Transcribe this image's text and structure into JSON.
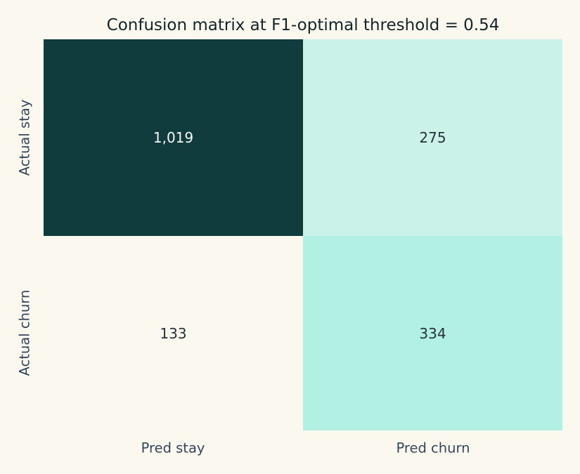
{
  "chart_data": {
    "type": "heatmap",
    "title": "Confusion matrix at F1-optimal threshold = 0.54",
    "threshold": 0.54,
    "rows": [
      "Actual stay",
      "Actual churn"
    ],
    "cols": [
      "Pred stay",
      "Pred churn"
    ],
    "values": [
      [
        1019,
        275
      ],
      [
        133,
        334
      ]
    ],
    "cell_labels": [
      [
        "1,019",
        "275"
      ],
      [
        "133",
        "334"
      ]
    ],
    "cell_colors": [
      [
        "#113c3e",
        "#caf2e8"
      ],
      [
        "#fbf8f0",
        "#b2f0e3"
      ]
    ],
    "cell_text_colors": [
      [
        "#f5f6f2",
        "#27323a"
      ],
      [
        "#27323a",
        "#27323a"
      ]
    ],
    "background_color": "#fbf8f0",
    "title_color": "#14252a",
    "tick_label_color": "#35465c",
    "grid": false,
    "legend": "none",
    "colorbar": "none"
  }
}
